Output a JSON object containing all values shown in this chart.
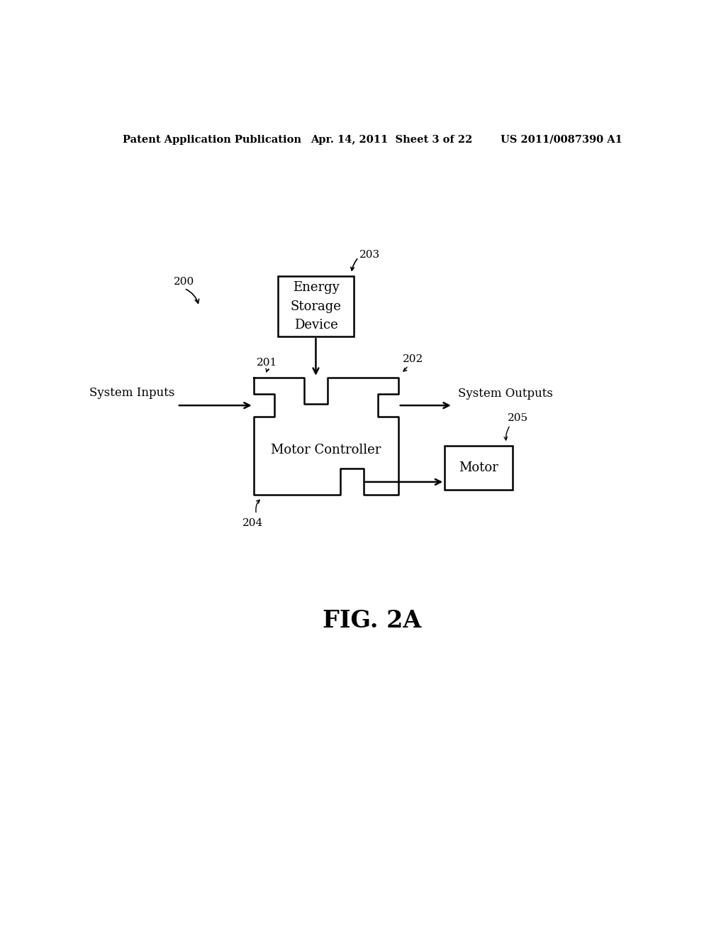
{
  "bg_color": "#ffffff",
  "header_left": "Patent Application Publication",
  "header_mid": "Apr. 14, 2011  Sheet 3 of 22",
  "header_right": "US 2011/0087390 A1",
  "fig_label": "FIG. 2A",
  "label_200": "200",
  "label_201": "201",
  "label_202": "202",
  "label_203": "203",
  "label_204": "204",
  "label_205": "205",
  "text_energy": "Energy\nStorage\nDevice",
  "text_motor_ctrl": "Motor Controller",
  "text_motor": "Motor",
  "text_sys_in": "System Inputs",
  "text_sys_out": "System Outputs",
  "line_color": "#000000",
  "font_size_header": 10.5,
  "font_size_label": 11,
  "font_size_body": 13,
  "font_size_fig": 24
}
